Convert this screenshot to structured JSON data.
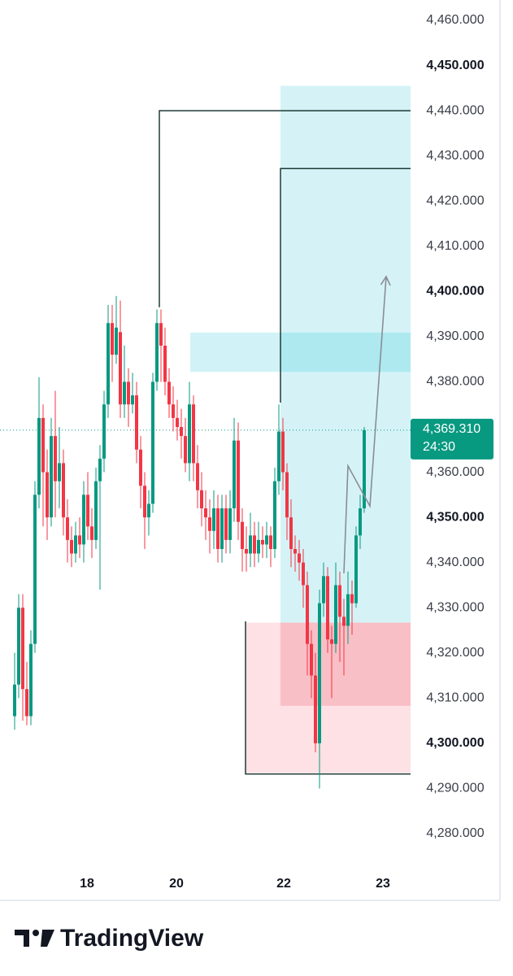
{
  "chart_data": {
    "type": "candlestick",
    "up_color": "#089981",
    "down_color": "#f23645",
    "ylim": [
      4271.9,
      4464.5
    ],
    "xlim": [
      -3.6,
      97.4
    ],
    "yticks": [
      {
        "value": 4460,
        "label": "4,460.000"
      },
      {
        "value": 4450,
        "label": "4,450.000"
      },
      {
        "value": 4440,
        "label": "4,440.000"
      },
      {
        "value": 4430,
        "label": "4,430.000"
      },
      {
        "value": 4420,
        "label": "4,420.000"
      },
      {
        "value": 4410,
        "label": "4,410.000"
      },
      {
        "value": 4400,
        "label": "4,400.000"
      },
      {
        "value": 4390,
        "label": "4,390.000"
      },
      {
        "value": 4380,
        "label": "4,380.000"
      },
      {
        "value": 4360,
        "label": "4,360.000"
      },
      {
        "value": 4350,
        "label": "4,350.000"
      },
      {
        "value": 4340,
        "label": "4,340.000"
      },
      {
        "value": 4330,
        "label": "4,330.000"
      },
      {
        "value": 4320,
        "label": "4,320.000"
      },
      {
        "value": 4310,
        "label": "4,310.000"
      },
      {
        "value": 4300,
        "label": "4,300.000"
      },
      {
        "value": 4290,
        "label": "4,290.000"
      },
      {
        "value": 4280,
        "label": "4,280.000"
      }
    ],
    "xticks": [
      {
        "value": 17.8,
        "label": "18"
      },
      {
        "value": 39.8,
        "label": "20"
      },
      {
        "value": 66.2,
        "label": "22"
      },
      {
        "value": 90.6,
        "label": "23"
      }
    ],
    "open": [
      4306,
      4313,
      4330,
      4312,
      4306,
      4322,
      4355,
      4372,
      4360,
      4350,
      4368,
      4358,
      4362,
      4350,
      4345,
      4342,
      4346,
      4344,
      4355,
      4348,
      4345,
      4358,
      4363,
      4375,
      4393,
      4386,
      4391,
      4375,
      4380,
      4375,
      4377,
      4365,
      4357,
      4350,
      4353,
      4380,
      4393,
      4388,
      4380,
      4375,
      4372,
      4370,
      4368,
      4362,
      4375,
      4362,
      4356,
      4352,
      4350,
      4347,
      4352,
      4343,
      4352,
      4345,
      4352,
      4367,
      4349,
      4343,
      4342,
      4346,
      4342,
      4345,
      4344,
      4346,
      4343,
      4358,
      4369,
      4360,
      4350,
      4343,
      4342,
      4340,
      4335,
      4322,
      4315,
      4300,
      4331,
      4337,
      4323,
      4322,
      4335,
      4328,
      4326,
      4333,
      4331,
      4346,
      4352
    ],
    "high": [
      4320,
      4333,
      4333,
      4318,
      4325,
      4358,
      4381,
      4375,
      4365,
      4372,
      4378,
      4370,
      4365,
      4354,
      4348,
      4349,
      4350,
      4358,
      4360,
      4352,
      4361,
      4366,
      4378,
      4397,
      4397,
      4399,
      4398,
      4388,
      4383,
      4382,
      4380,
      4368,
      4360,
      4356,
      4382,
      4396,
      4396,
      4392,
      4383,
      4379,
      4376,
      4374,
      4372,
      4380,
      4377,
      4366,
      4360,
      4356,
      4354,
      4356,
      4355,
      4355,
      4355,
      4356,
      4372,
      4371,
      4352,
      4348,
      4351,
      4349,
      4349,
      4348,
      4349,
      4348,
      4361,
      4375,
      4372,
      4362,
      4354,
      4346,
      4345,
      4343,
      4338,
      4325,
      4320,
      4334,
      4340,
      4339,
      4326,
      4340,
      4338,
      4332,
      4338,
      4336,
      4348,
      4355,
      4370
    ],
    "low": [
      4303,
      4310,
      4305,
      4304,
      4304,
      4320,
      4352,
      4348,
      4345,
      4348,
      4350,
      4352,
      4346,
      4340,
      4339,
      4340,
      4341,
      4340,
      4345,
      4341,
      4343,
      4334,
      4360,
      4372,
      4380,
      4384,
      4372,
      4372,
      4370,
      4373,
      4362,
      4352,
      4343,
      4346,
      4351,
      4378,
      4380,
      4377,
      4372,
      4369,
      4367,
      4363,
      4360,
      4358,
      4358,
      4352,
      4348,
      4345,
      4342,
      4343,
      4340,
      4340,
      4342,
      4342,
      4349,
      4345,
      4338,
      4338,
      4339,
      4339,
      4340,
      4341,
      4341,
      4339,
      4341,
      4355,
      4356,
      4345,
      4339,
      4338,
      4336,
      4330,
      4315,
      4310,
      4298,
      4290,
      4328,
      4320,
      4310,
      4320,
      4318,
      4315,
      4322,
      4324,
      4330,
      4343,
      4351
    ],
    "close": [
      4313,
      4330,
      4312,
      4306,
      4322,
      4355,
      4372,
      4360,
      4350,
      4368,
      4358,
      4362,
      4350,
      4345,
      4342,
      4346,
      4344,
      4355,
      4348,
      4345,
      4358,
      4363,
      4375,
      4393,
      4386,
      4392,
      4375,
      4380,
      4375,
      4377,
      4365,
      4357,
      4350,
      4353,
      4380,
      4393,
      4388,
      4380,
      4375,
      4372,
      4370,
      4368,
      4362,
      4375,
      4362,
      4356,
      4352,
      4350,
      4347,
      4352,
      4343,
      4352,
      4345,
      4352,
      4367,
      4349,
      4343,
      4342,
      4346,
      4342,
      4345,
      4344,
      4346,
      4343,
      4358,
      4369,
      4360,
      4350,
      4343,
      4342,
      4340,
      4335,
      4322,
      4315,
      4300,
      4331,
      4337,
      4323,
      4322,
      4335,
      4328,
      4326,
      4333,
      4331,
      4346,
      4352,
      4369.31
    ],
    "last_label": "4,369.310",
    "countdown": "24:30",
    "zones": [
      {
        "from": 65.4,
        "top": 4445.5,
        "bottom": 4326.7,
        "color": "#d5f3f7"
      },
      {
        "from": 43.2,
        "top": 4390.9,
        "bottom": 4382.2,
        "color": "rgba(0,188,212,0.18)"
      },
      {
        "from": 56.8,
        "top": 4326.7,
        "bottom": 4293.5,
        "color": "#fde1e4"
      },
      {
        "from": 65.4,
        "top": 4326.7,
        "bottom": 4308.3,
        "color": "#f9bfc6"
      }
    ],
    "levels": [
      {
        "from": 35.6,
        "price": 4440,
        "start_price": 4396.5
      },
      {
        "from": 65.4,
        "price": 4427.2,
        "start_price": 4375.4
      },
      {
        "from": 56.8,
        "price": 4293.2,
        "start_price": 4327
      }
    ],
    "projection": [
      {
        "x": 81,
        "y": 4337.6
      },
      {
        "x": 82,
        "y": 4361.4
      },
      {
        "x": 87.4,
        "y": 4352.5
      },
      {
        "x": 91.4,
        "y": 4403.3
      }
    ]
  },
  "logo": {
    "text": "TradingView"
  }
}
